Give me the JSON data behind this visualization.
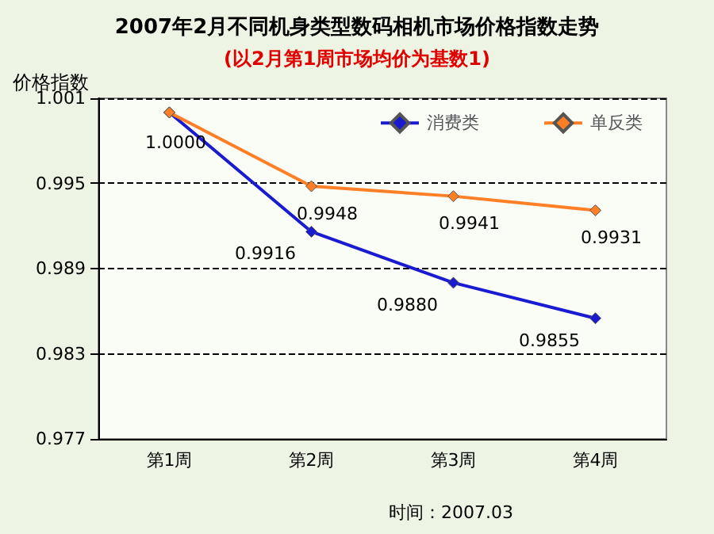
{
  "chart_data": {
    "type": "line",
    "title": "2007年2月不同机身类型数码相机市场价格指数走势",
    "subtitle": "(以2月第1周市场均价为基数1)",
    "ylabel": "价格指数",
    "categories": [
      "第1周",
      "第2周",
      "第3周",
      "第4周"
    ],
    "series": [
      {
        "name": "消费类",
        "color": "#1a1ad0",
        "values": [
          1.0,
          0.9916,
          0.988,
          0.9855
        ],
        "value_labels": [
          "1.0000",
          "0.9916",
          "0.9880",
          "0.9855"
        ]
      },
      {
        "name": "单反类",
        "color": "#ff7f27",
        "values": [
          1.0,
          0.9948,
          0.9941,
          0.9931
        ],
        "value_labels": [
          null,
          "0.9948",
          "0.9941",
          "0.9931"
        ]
      }
    ],
    "ylim": [
      0.977,
      1.001
    ],
    "yticks": [
      0.977,
      0.983,
      0.989,
      0.995,
      1.001
    ],
    "grid": "y",
    "legend": "top right",
    "marker": "diamond",
    "line_style": "solid",
    "annotations": [
      "时间：2007.03"
    ]
  }
}
